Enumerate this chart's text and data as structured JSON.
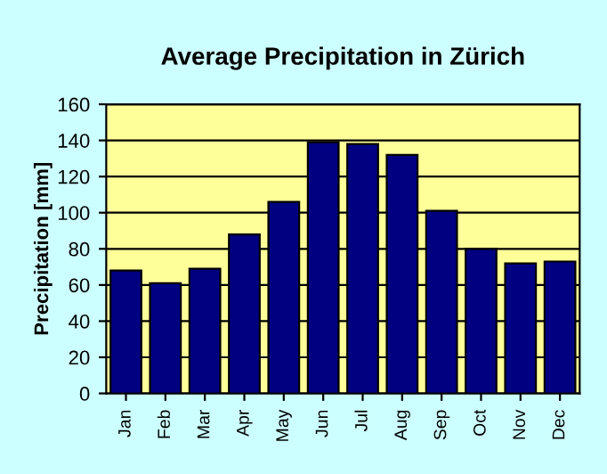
{
  "chart_data": {
    "type": "bar",
    "title": "Average Precipitation in Zürich",
    "ylabel": "Precipitation [mm]",
    "categories": [
      "Jan",
      "Feb",
      "Mar",
      "Apr",
      "May",
      "Jun",
      "Jul",
      "Aug",
      "Sep",
      "Oct",
      "Nov",
      "Dec"
    ],
    "values": [
      68,
      61,
      69,
      88,
      106,
      139,
      138,
      132,
      101,
      80,
      72,
      73
    ],
    "color": "#000080",
    "ylim": [
      0,
      160
    ],
    "yticks": [
      0,
      20,
      40,
      60,
      80,
      100,
      120,
      140,
      160
    ],
    "grid": "y"
  }
}
